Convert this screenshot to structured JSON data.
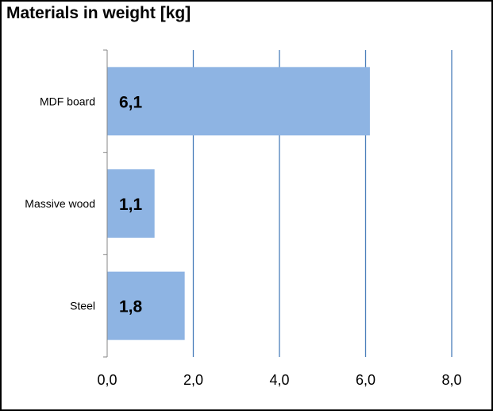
{
  "chart_data": {
    "type": "bar",
    "orientation": "horizontal",
    "title": "Materials in weight [kg]",
    "categories": [
      "MDF board",
      "Massive wood",
      "Steel"
    ],
    "values": [
      6.1,
      1.1,
      1.8
    ],
    "data_labels": [
      "6,1",
      "1,1",
      "1,8"
    ],
    "xlim": [
      0,
      8
    ],
    "x_ticks": [
      0,
      2,
      4,
      6,
      8
    ],
    "x_tick_labels": [
      "0,0",
      "2,0",
      "4,0",
      "6,0",
      "8,0"
    ],
    "xlabel": "",
    "ylabel": "",
    "grid": "vertical",
    "legend": "none",
    "colors": {
      "bar": "#8eb4e3",
      "grid": "#4a7ebb",
      "axis": "#868686",
      "text": "#000000"
    }
  }
}
